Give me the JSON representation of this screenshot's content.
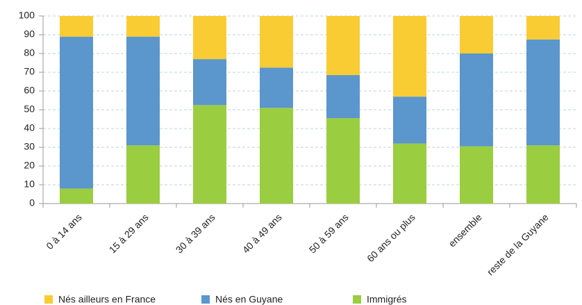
{
  "chart_data": {
    "type": "stacked_bar",
    "categories": [
      "0 à 14 ans",
      "15 à 29 ans",
      "30 à 39 ans",
      "40 à 49 ans",
      "50 à 59 ans",
      "60 ans ou plus",
      "ensemble",
      "reste de la Guyane"
    ],
    "series": [
      {
        "name": "Nés ailleurs en France",
        "color": "#f9cc33",
        "values": [
          11,
          11,
          23,
          27.5,
          31.5,
          43,
          20,
          12.5
        ]
      },
      {
        "name": "Nés en Guyane",
        "color": "#5b96cc",
        "values": [
          81,
          58,
          24.5,
          21.5,
          23,
          25,
          49.5,
          56.5
        ]
      },
      {
        "name": "Immigrés",
        "color": "#9acd3f",
        "values": [
          8,
          31,
          52.5,
          51,
          45.5,
          32,
          30.5,
          31
        ]
      }
    ],
    "ylim": [
      0,
      100
    ],
    "yticks": [
      0,
      10,
      20,
      30,
      40,
      50,
      60,
      70,
      80,
      90,
      100
    ],
    "grid": true,
    "legend": "bottom"
  }
}
